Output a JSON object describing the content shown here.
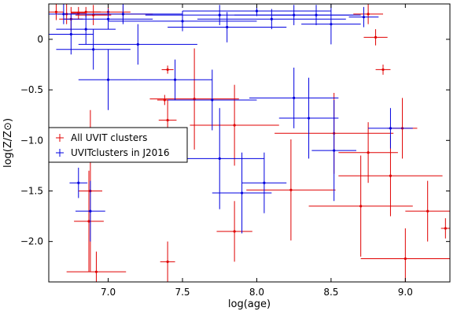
{
  "chart_data": {
    "type": "scatter",
    "xlabel": "log(age)",
    "ylabel": "log(Z/Z⊙)",
    "xlim": [
      6.6,
      9.3
    ],
    "ylim": [
      -2.4,
      0.35
    ],
    "xticks": [
      7.0,
      7.5,
      8.0,
      8.5,
      9.0
    ],
    "xtick_labels": [
      "7.0",
      "7.5",
      "8.0",
      "8.5",
      "9.0"
    ],
    "yticks": [
      0,
      -0.5,
      -1.0,
      -1.5,
      -2.0
    ],
    "ytick_labels": [
      "0",
      "−0.5",
      "−1.0",
      "−1.5",
      "−2.0"
    ],
    "legend_position": "center-left",
    "grid": false,
    "series": [
      {
        "name": "All UVIT clusters",
        "color": "#e00000",
        "points": [
          {
            "x": 6.65,
            "y": 0.27,
            "xerr": 0.05,
            "yerr": 0.08
          },
          {
            "x": 6.72,
            "y": 0.25,
            "xerr": 0.06,
            "yerr": 0.1
          },
          {
            "x": 6.75,
            "y": 0.2,
            "xerr": 0.08,
            "yerr": 0.12
          },
          {
            "x": 6.8,
            "y": 0.26,
            "xerr": 0.05,
            "yerr": 0.06
          },
          {
            "x": 6.85,
            "y": 0.27,
            "xerr": 0.1,
            "yerr": 0.05
          },
          {
            "x": 6.9,
            "y": 0.24,
            "xerr": 0.12,
            "yerr": 0.1
          },
          {
            "x": 7.0,
            "y": 0.27,
            "xerr": 0.15,
            "yerr": 0.05
          },
          {
            "x": 7.1,
            "y": 0.25,
            "xerr": 0.2,
            "yerr": 0.08
          },
          {
            "x": 7.4,
            "y": -0.3,
            "xerr": 0.04,
            "yerr": 0.04
          },
          {
            "x": 7.38,
            "y": -0.6,
            "xerr": 0.05,
            "yerr": 0.05
          },
          {
            "x": 7.4,
            "y": -0.8,
            "xerr": 0.06,
            "yerr": 0.2
          },
          {
            "x": 7.58,
            "y": -0.59,
            "xerr": 0.3,
            "yerr": 0.5
          },
          {
            "x": 7.85,
            "y": -0.85,
            "xerr": 0.3,
            "yerr": 0.4
          },
          {
            "x": 7.85,
            "y": -1.9,
            "xerr": 0.12,
            "yerr": 0.3
          },
          {
            "x": 8.23,
            "y": -1.49,
            "xerr": 0.3,
            "yerr": 0.5
          },
          {
            "x": 8.52,
            "y": -0.93,
            "xerr": 0.4,
            "yerr": 0.4
          },
          {
            "x": 8.7,
            "y": -1.65,
            "xerr": 0.35,
            "yerr": 0.5
          },
          {
            "x": 8.85,
            "y": -0.3,
            "xerr": 0.05,
            "yerr": 0.05
          },
          {
            "x": 8.9,
            "y": -1.35,
            "xerr": 0.35,
            "yerr": 0.4
          },
          {
            "x": 9.0,
            "y": -2.17,
            "xerr": 0.3,
            "yerr": 0.3
          },
          {
            "x": 9.15,
            "y": -1.7,
            "xerr": 0.15,
            "yerr": 0.3
          },
          {
            "x": 9.27,
            "y": -1.87,
            "xerr": 0.03,
            "yerr": 0.1
          },
          {
            "x": 8.8,
            "y": 0.02,
            "xerr": 0.08,
            "yerr": 0.08
          },
          {
            "x": 8.75,
            "y": 0.25,
            "xerr": 0.1,
            "yerr": 0.1
          },
          {
            "x": 7.4,
            "y": -2.2,
            "xerr": 0.05,
            "yerr": 0.2
          },
          {
            "x": 6.92,
            "y": -2.3,
            "xerr": 0.2,
            "yerr": 0.2
          },
          {
            "x": 6.87,
            "y": -1.8,
            "xerr": 0.1,
            "yerr": 0.5
          },
          {
            "x": 6.88,
            "y": -1.5,
            "xerr": 0.08,
            "yerr": 0.8
          },
          {
            "x": 8.98,
            "y": -0.88,
            "xerr": 0.1,
            "yerr": 0.3
          },
          {
            "x": 8.75,
            "y": -1.12,
            "xerr": 0.2,
            "yerr": 0.3
          }
        ]
      },
      {
        "name": "UVITclusters in J2016",
        "color": "#0000e0",
        "points": [
          {
            "x": 6.7,
            "y": 0.25,
            "xerr": 0.1,
            "yerr": 0.1
          },
          {
            "x": 6.75,
            "y": 0.05,
            "xerr": 0.15,
            "yerr": 0.2
          },
          {
            "x": 6.85,
            "y": 0.1,
            "xerr": 0.2,
            "yerr": 0.15
          },
          {
            "x": 6.9,
            "y": -0.1,
            "xerr": 0.25,
            "yerr": 0.2
          },
          {
            "x": 7.0,
            "y": 0.2,
            "xerr": 0.3,
            "yerr": 0.1
          },
          {
            "x": 7.1,
            "y": 0.25,
            "xerr": 0.4,
            "yerr": 0.1
          },
          {
            "x": 7.2,
            "y": -0.05,
            "xerr": 0.4,
            "yerr": 0.2
          },
          {
            "x": 7.5,
            "y": 0.18,
            "xerr": 0.5,
            "yerr": 0.1
          },
          {
            "x": 7.75,
            "y": 0.24,
            "xerr": 0.5,
            "yerr": 0.1
          },
          {
            "x": 7.8,
            "y": 0.12,
            "xerr": 0.4,
            "yerr": 0.15
          },
          {
            "x": 8.0,
            "y": 0.28,
            "xerr": 0.5,
            "yerr": 0.05
          },
          {
            "x": 8.1,
            "y": 0.2,
            "xerr": 0.5,
            "yerr": 0.1
          },
          {
            "x": 8.25,
            "y": 0.24,
            "xerr": 0.4,
            "yerr": 0.1
          },
          {
            "x": 8.4,
            "y": 0.24,
            "xerr": 0.3,
            "yerr": 0.1
          },
          {
            "x": 7.0,
            "y": -0.4,
            "xerr": 0.2,
            "yerr": 0.3
          },
          {
            "x": 7.45,
            "y": -0.4,
            "xerr": 0.25,
            "yerr": 0.2
          },
          {
            "x": 7.7,
            "y": -0.6,
            "xerr": 0.3,
            "yerr": 0.3
          },
          {
            "x": 7.75,
            "y": -1.18,
            "xerr": 0.3,
            "yerr": 0.5
          },
          {
            "x": 7.9,
            "y": -1.52,
            "xerr": 0.2,
            "yerr": 0.4
          },
          {
            "x": 8.05,
            "y": -1.42,
            "xerr": 0.15,
            "yerr": 0.3
          },
          {
            "x": 8.25,
            "y": -0.58,
            "xerr": 0.3,
            "yerr": 0.3
          },
          {
            "x": 8.35,
            "y": -0.78,
            "xerr": 0.2,
            "yerr": 0.4
          },
          {
            "x": 8.52,
            "y": -1.1,
            "xerr": 0.15,
            "yerr": 0.5
          },
          {
            "x": 8.9,
            "y": -0.88,
            "xerr": 0.15,
            "yerr": 0.2
          },
          {
            "x": 6.8,
            "y": -1.42,
            "xerr": 0.06,
            "yerr": 0.15
          },
          {
            "x": 6.88,
            "y": -1.7,
            "xerr": 0.1,
            "yerr": 0.3
          },
          {
            "x": 8.72,
            "y": 0.22,
            "xerr": 0.1,
            "yerr": 0.1
          },
          {
            "x": 8.5,
            "y": 0.15,
            "xerr": 0.2,
            "yerr": 0.2
          }
        ]
      }
    ]
  }
}
